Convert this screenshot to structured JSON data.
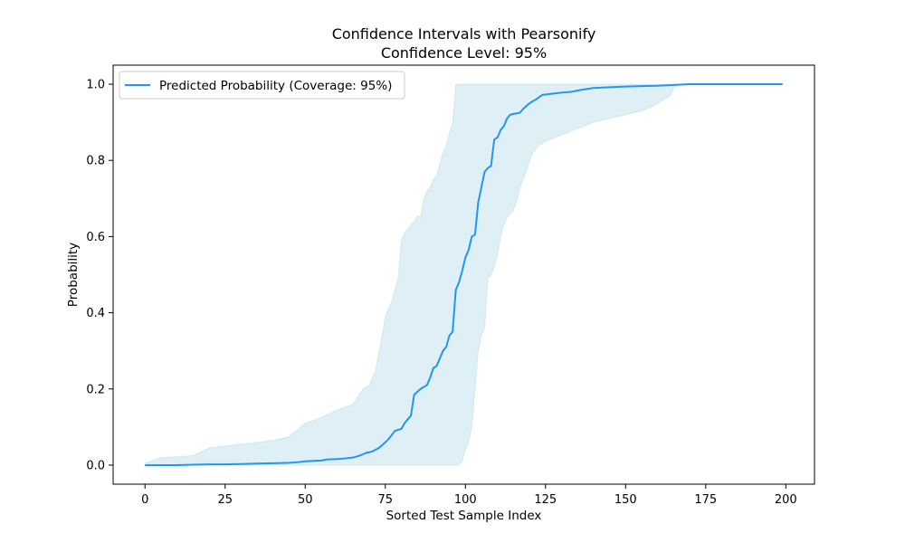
{
  "chart_data": {
    "type": "line",
    "title": "Confidence Intervals with Pearsonify",
    "subtitle": "Confidence Level: 95%",
    "xlabel": "Sorted Test Sample Index",
    "ylabel": "Probability",
    "xlim": [
      -9.95,
      208.95
    ],
    "ylim": [
      -0.05,
      1.05
    ],
    "xticks": [
      0,
      25,
      50,
      75,
      100,
      125,
      150,
      175,
      200
    ],
    "yticks": [
      0.0,
      0.2,
      0.4,
      0.6,
      0.8,
      1.0
    ],
    "ytick_labels": [
      "0.0",
      "0.2",
      "0.4",
      "0.6",
      "0.8",
      "1.0"
    ],
    "grid": false,
    "legend_position": "top-left",
    "series": [
      {
        "name": "Predicted Probability (Coverage: 95%)",
        "color": "#2196f3",
        "x": [
          0,
          5,
          10,
          15,
          20,
          25,
          30,
          35,
          40,
          45,
          48,
          50,
          52,
          55,
          57,
          60,
          63,
          65,
          67,
          69,
          71,
          73,
          75,
          76,
          78,
          80,
          81,
          82,
          83,
          84,
          86,
          87,
          88,
          89,
          90,
          91,
          92,
          93,
          94,
          95,
          96,
          97,
          98,
          99,
          100,
          101,
          102,
          103,
          104,
          105,
          106,
          107,
          108,
          109,
          110,
          111,
          112,
          113,
          114,
          115,
          117,
          118,
          120,
          122,
          124,
          127,
          130,
          133,
          136,
          140,
          145,
          150,
          155,
          160,
          165,
          170,
          180,
          190,
          199
        ],
        "values": [
          0.0,
          0.0,
          0.0,
          0.001,
          0.002,
          0.002,
          0.003,
          0.004,
          0.005,
          0.006,
          0.008,
          0.01,
          0.011,
          0.012,
          0.015,
          0.016,
          0.018,
          0.02,
          0.025,
          0.032,
          0.036,
          0.045,
          0.06,
          0.068,
          0.09,
          0.095,
          0.11,
          0.12,
          0.13,
          0.185,
          0.2,
          0.205,
          0.21,
          0.23,
          0.255,
          0.26,
          0.28,
          0.3,
          0.31,
          0.34,
          0.35,
          0.46,
          0.48,
          0.51,
          0.545,
          0.565,
          0.6,
          0.605,
          0.69,
          0.73,
          0.77,
          0.78,
          0.785,
          0.855,
          0.86,
          0.88,
          0.89,
          0.91,
          0.92,
          0.922,
          0.925,
          0.935,
          0.95,
          0.96,
          0.972,
          0.975,
          0.978,
          0.98,
          0.985,
          0.99,
          0.992,
          0.994,
          0.995,
          0.996,
          0.998,
          1.0,
          1.0,
          1.0,
          1.0
        ]
      },
      {
        "name": "",
        "type": "area-band",
        "color": "#add8e6",
        "opacity": 0.4,
        "x": [
          0,
          5,
          10,
          15,
          20,
          25,
          30,
          35,
          40,
          45,
          50,
          55,
          60,
          65,
          68,
          70,
          72,
          74,
          75,
          77,
          79,
          80,
          81,
          82,
          83,
          84,
          85,
          86,
          87,
          88,
          89,
          90,
          91,
          92,
          93,
          94,
          95,
          96,
          97,
          98,
          99,
          100,
          101,
          102,
          103,
          104,
          105,
          106,
          107,
          108,
          109,
          110,
          111,
          112,
          113,
          114,
          115,
          116,
          117,
          118,
          119,
          120,
          121,
          122,
          123,
          125,
          128,
          131,
          134,
          137,
          140,
          145,
          150,
          155,
          158,
          160,
          162,
          164,
          165,
          166,
          170,
          180,
          190,
          199
        ],
        "upper": [
          0.005,
          0.02,
          0.022,
          0.025,
          0.045,
          0.05,
          0.055,
          0.06,
          0.065,
          0.075,
          0.11,
          0.125,
          0.145,
          0.16,
          0.2,
          0.21,
          0.25,
          0.34,
          0.39,
          0.43,
          0.49,
          0.59,
          0.61,
          0.62,
          0.63,
          0.64,
          0.655,
          0.65,
          0.7,
          0.72,
          0.73,
          0.75,
          0.76,
          0.79,
          0.82,
          0.84,
          0.87,
          0.9,
          1.0,
          1.0,
          1.0,
          1.0,
          1.0,
          1.0,
          1.0,
          1.0,
          1.0,
          1.0,
          1.0,
          1.0,
          1.0,
          1.0,
          1.0,
          1.0,
          1.0,
          1.0,
          1.0,
          1.0,
          1.0,
          1.0,
          1.0,
          1.0,
          1.0,
          1.0,
          1.0,
          1.0,
          1.0,
          1.0,
          1.0,
          1.0,
          1.0,
          1.0,
          1.0,
          1.0,
          1.0,
          1.0,
          1.0,
          1.0,
          1.0,
          1.0,
          1.0,
          1.0,
          1.0,
          1.0
        ],
        "lower": [
          0.0,
          0.0,
          0.0,
          0.0,
          0.0,
          0.0,
          0.0,
          0.0,
          0.0,
          0.0,
          0.0,
          0.0,
          0.0,
          0.0,
          0.0,
          0.0,
          0.0,
          0.0,
          0.0,
          0.0,
          0.0,
          0.0,
          0.0,
          0.0,
          0.0,
          0.0,
          0.0,
          0.0,
          0.0,
          0.0,
          0.0,
          0.0,
          0.0,
          0.0,
          0.0,
          0.0,
          0.0,
          0.0,
          0.0,
          0.0,
          0.01,
          0.04,
          0.06,
          0.1,
          0.2,
          0.3,
          0.34,
          0.36,
          0.49,
          0.5,
          0.52,
          0.55,
          0.6,
          0.63,
          0.65,
          0.66,
          0.67,
          0.69,
          0.73,
          0.75,
          0.77,
          0.8,
          0.82,
          0.83,
          0.84,
          0.85,
          0.86,
          0.87,
          0.88,
          0.89,
          0.9,
          0.91,
          0.92,
          0.93,
          0.94,
          0.95,
          0.96,
          0.97,
          0.99,
          1.0,
          1.0,
          1.0,
          1.0,
          1.0
        ]
      }
    ]
  }
}
